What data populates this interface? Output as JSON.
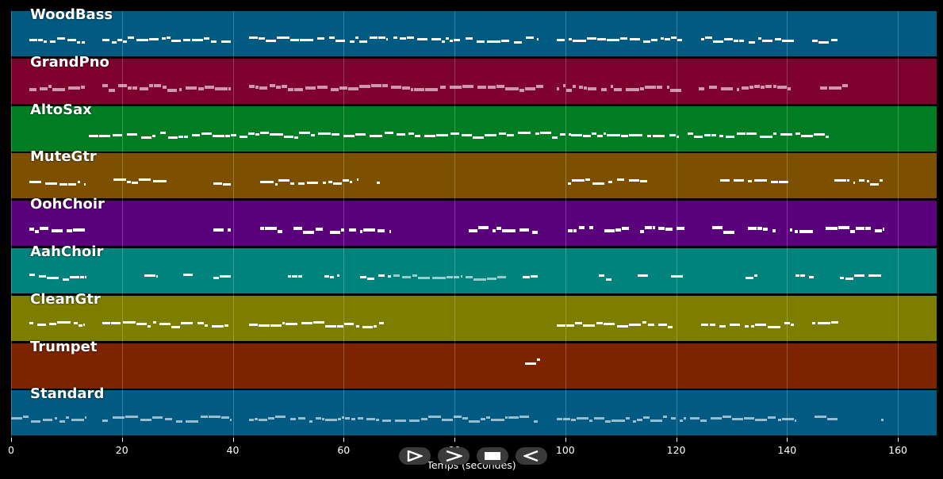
{
  "chart_data": {
    "type": "piano-roll",
    "xlabel": "Temps (secondes)",
    "xlim": [
      0,
      167
    ],
    "xticks": [
      0,
      20,
      40,
      60,
      80,
      100,
      120,
      140,
      160
    ],
    "grid": true,
    "tracks": [
      {
        "name": "WoodBass",
        "color": "#005a82",
        "notes": [
          [
            3.3,
            13.3
          ],
          [
            16.5,
            39.6
          ],
          [
            43,
            68
          ],
          [
            69,
            81.4
          ],
          [
            82,
            95
          ],
          [
            98.5,
            121
          ],
          [
            124.5,
            141.2
          ],
          [
            144.5,
            149.2
          ]
        ]
      },
      {
        "name": "GrandPno",
        "color": "#7d002d",
        "notes": [
          [
            3.3,
            13.3
          ],
          [
            16.5,
            39.6
          ],
          [
            43,
            68
          ],
          [
            68.5,
            96
          ],
          [
            98.5,
            121
          ],
          [
            124,
            141.2
          ],
          [
            146,
            151
          ]
        ]
      },
      {
        "name": "AltoSax",
        "color": "#007d23",
        "notes": [
          [
            14,
            69
          ],
          [
            69.5,
            101
          ],
          [
            101,
            120.5
          ],
          [
            122,
            147.6
          ]
        ]
      },
      {
        "name": "MuteGtr",
        "color": "#7d5000",
        "notes": [
          [
            3.3,
            13.3
          ],
          [
            18.5,
            28.5
          ],
          [
            36.5,
            39.6
          ],
          [
            45,
            62.5
          ],
          [
            66,
            66.5
          ],
          [
            100.5,
            114.8
          ],
          [
            128,
            140.3
          ],
          [
            148.5,
            152
          ],
          [
            153,
            157.3
          ]
        ]
      },
      {
        "name": "OohChoir",
        "color": "#5a007d",
        "notes": [
          [
            3.3,
            13.3
          ],
          [
            36.5,
            39.6
          ],
          [
            45,
            49.3
          ],
          [
            51,
            56.3
          ],
          [
            57.5,
            62.2
          ],
          [
            63,
            68.3
          ],
          [
            82.5,
            95
          ],
          [
            100.5,
            105
          ],
          [
            107,
            111.5
          ],
          [
            113.5,
            121.5
          ],
          [
            126.5,
            130.5
          ],
          [
            133,
            138
          ],
          [
            140.5,
            144.8
          ],
          [
            147,
            157.3
          ]
        ]
      },
      {
        "name": "AahChoir",
        "color": "#00827d",
        "notes": [
          [
            3.3,
            13.3
          ],
          [
            24,
            26.3
          ],
          [
            31,
            32.8
          ],
          [
            36.5,
            39.6
          ],
          [
            50,
            52.5
          ],
          [
            56.5,
            59.3
          ],
          [
            63,
            68.5
          ],
          [
            69,
            81.3
          ],
          [
            82,
            89.3
          ],
          [
            92.3,
            95
          ],
          [
            106,
            108.3
          ],
          [
            113,
            114.9
          ],
          [
            119,
            121.3
          ],
          [
            132.5,
            134.6
          ],
          [
            141.5,
            144.8
          ],
          [
            149.5,
            157.3
          ]
        ]
      },
      {
        "name": "CleanGtr",
        "color": "#7d7d00",
        "notes": [
          [
            3.3,
            13.3
          ],
          [
            16.5,
            39.6
          ],
          [
            43,
            67.3
          ],
          [
            98.5,
            119.4
          ],
          [
            124.5,
            141.2
          ],
          [
            144.5,
            149.2
          ]
        ]
      },
      {
        "name": "Trumpet",
        "color": "#7d2300",
        "notes": [
          [
            92.8,
            95.4
          ]
        ]
      },
      {
        "name": "Standard",
        "color": "#005a82",
        "notes": [
          [
            0,
            13.3
          ],
          [
            16.5,
            39.6
          ],
          [
            43,
            95
          ],
          [
            98.5,
            141.5
          ],
          [
            145,
            149.2
          ],
          [
            157,
            157.4
          ]
        ]
      }
    ]
  },
  "playback": {
    "play_icon": "play-icon",
    "fast_forward_icon": "fast-forward-icon",
    "stop_icon": "stop-icon",
    "rewind_icon": "rewind-icon"
  }
}
